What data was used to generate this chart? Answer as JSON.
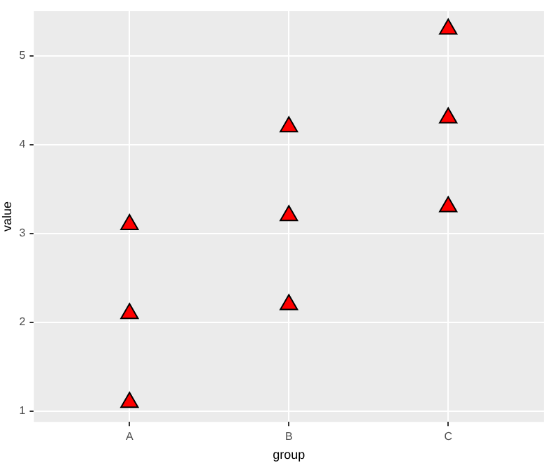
{
  "chart_data": {
    "type": "scatter",
    "xlabel": "group",
    "ylabel": "value",
    "categories": [
      "A",
      "B",
      "C"
    ],
    "series": [
      {
        "color": "#ff0000",
        "x": [
          "A",
          "A",
          "A",
          "B",
          "B",
          "B",
          "C",
          "C",
          "C"
        ],
        "values": [
          3.1,
          2.1,
          1.1,
          4.2,
          3.2,
          2.2,
          5.3,
          4.3,
          3.3
        ]
      }
    ],
    "ylim": [
      0.88,
      5.5
    ],
    "yticks": [
      1,
      2,
      3,
      4,
      5
    ],
    "grid": true,
    "legend": false,
    "marker": "triangle"
  }
}
